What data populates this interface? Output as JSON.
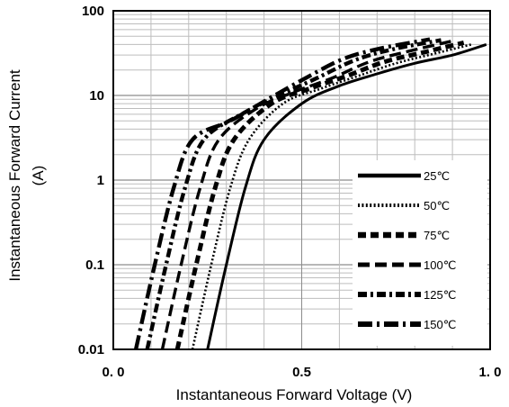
{
  "chart_data": {
    "type": "line",
    "title": "",
    "xlabel": "Instantaneous Forward Voltage (V)",
    "ylabel_line1": "Instantaneous Forward Current",
    "ylabel_line2": "(A)",
    "xlim": [
      0.0,
      1.0
    ],
    "ylim": [
      0.01,
      100
    ],
    "y_scale": "log",
    "grid": true,
    "legend_position": "bottom-right",
    "x_ticks": [
      {
        "value": 0.0,
        "label": "0. 0"
      },
      {
        "value": 0.5,
        "label": "0.5"
      },
      {
        "value": 1.0,
        "label": "1. 0"
      }
    ],
    "y_ticks": [
      {
        "value": 100,
        "label": "100"
      },
      {
        "value": 10,
        "label": "10"
      },
      {
        "value": 1,
        "label": "1"
      },
      {
        "value": 0.1,
        "label": "0.1"
      },
      {
        "value": 0.01,
        "label": "0.01"
      }
    ],
    "series": [
      {
        "name": "25℃",
        "style": "solid",
        "x": [
          0.25,
          0.3,
          0.35,
          0.4,
          0.5,
          0.6,
          0.7,
          0.8,
          0.9,
          0.99
        ],
        "y": [
          0.01,
          0.1,
          0.8,
          3,
          8,
          13,
          18,
          24,
          30,
          40
        ]
      },
      {
        "name": "50℃",
        "style": "dotted",
        "x": [
          0.21,
          0.26,
          0.31,
          0.36,
          0.45,
          0.55,
          0.65,
          0.75,
          0.85,
          0.95
        ],
        "y": [
          0.01,
          0.1,
          0.8,
          3,
          8,
          12,
          17,
          24,
          31,
          40
        ]
      },
      {
        "name": "75℃",
        "style": "thick-dash",
        "x": [
          0.17,
          0.22,
          0.27,
          0.32,
          0.42,
          0.52,
          0.62,
          0.72,
          0.82,
          0.93
        ],
        "y": [
          0.01,
          0.1,
          0.8,
          3,
          8,
          12,
          17,
          25,
          32,
          42
        ]
      },
      {
        "name": "100℃",
        "style": "long-dash",
        "x": [
          0.13,
          0.18,
          0.23,
          0.28,
          0.38,
          0.48,
          0.58,
          0.68,
          0.78,
          0.9
        ],
        "y": [
          0.01,
          0.1,
          0.8,
          3,
          7,
          11,
          16,
          25,
          33,
          44
        ]
      },
      {
        "name": "125℃",
        "style": "dash-dot",
        "x": [
          0.09,
          0.14,
          0.19,
          0.24,
          0.34,
          0.44,
          0.54,
          0.64,
          0.74,
          0.87
        ],
        "y": [
          0.01,
          0.1,
          0.8,
          3,
          6,
          10,
          16,
          26,
          35,
          45
        ]
      },
      {
        "name": "150℃",
        "style": "long-dash-dot",
        "x": [
          0.06,
          0.11,
          0.16,
          0.21,
          0.31,
          0.41,
          0.51,
          0.61,
          0.71,
          0.84
        ],
        "y": [
          0.01,
          0.1,
          0.8,
          3,
          5,
          9,
          16,
          27,
          36,
          46
        ]
      }
    ]
  }
}
